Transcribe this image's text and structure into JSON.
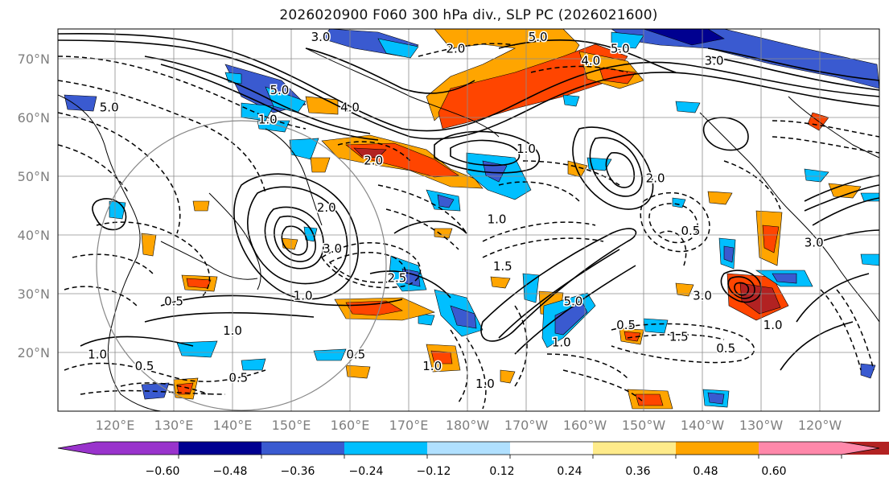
{
  "title": "2026020900 F060 300 hPa div., SLP PC (2026021600)",
  "map": {
    "lat_labels": [
      "70°N",
      "60°N",
      "50°N",
      "40°N",
      "30°N",
      "20°N"
    ],
    "lon_labels": [
      "120°E",
      "130°E",
      "140°E",
      "150°E",
      "160°E",
      "170°E",
      "180°W",
      "170°W",
      "160°W",
      "150°W",
      "140°W",
      "130°W",
      "120°W"
    ],
    "label_color": "#7f7f7f",
    "contour_labels": [
      {
        "text": "2.0",
        "lon": 178,
        "lat": 71
      },
      {
        "text": "5.0",
        "lon": 192,
        "lat": 73
      },
      {
        "text": "4.0",
        "lon": 201,
        "lat": 69
      },
      {
        "text": "5.0",
        "lon": 206,
        "lat": 71
      },
      {
        "text": "3.0",
        "lon": 222,
        "lat": 69
      },
      {
        "text": "5.0",
        "lon": 148,
        "lat": 64
      },
      {
        "text": "4.0",
        "lon": 160,
        "lat": 61
      },
      {
        "text": "5.0",
        "lon": 119,
        "lat": 61
      },
      {
        "text": "1.0",
        "lon": 146,
        "lat": 59
      },
      {
        "text": "3.0",
        "lon": 155,
        "lat": 73
      },
      {
        "text": "1.0",
        "lon": 190,
        "lat": 54
      },
      {
        "text": "2.0",
        "lon": 164,
        "lat": 52
      },
      {
        "text": "2.0",
        "lon": 156,
        "lat": 44
      },
      {
        "text": "3.0",
        "lon": 157,
        "lat": 37
      },
      {
        "text": "2.5",
        "lon": 168,
        "lat": 32
      },
      {
        "text": "1.0",
        "lon": 185,
        "lat": 42
      },
      {
        "text": "1.5",
        "lon": 186,
        "lat": 34
      },
      {
        "text": "1.0",
        "lon": 152,
        "lat": 29
      },
      {
        "text": "1.0",
        "lon": 140,
        "lat": 23
      },
      {
        "text": "0.5",
        "lon": 161,
        "lat": 19
      },
      {
        "text": "0.5",
        "lon": 141,
        "lat": 15
      },
      {
        "text": "0.5",
        "lon": 130,
        "lat": 28
      },
      {
        "text": "0.5",
        "lon": 207,
        "lat": 24
      },
      {
        "text": "1.5",
        "lon": 216,
        "lat": 22
      },
      {
        "text": "3.0",
        "lon": 220,
        "lat": 29
      },
      {
        "text": "3.0",
        "lon": 239,
        "lat": 38
      },
      {
        "text": "1.0",
        "lon": 232,
        "lat": 24
      },
      {
        "text": "0.5",
        "lon": 224,
        "lat": 20
      },
      {
        "text": "2.0",
        "lon": 212,
        "lat": 49
      },
      {
        "text": "0.5",
        "lon": 125,
        "lat": 17
      },
      {
        "text": "1.0",
        "lon": 117,
        "lat": 19
      },
      {
        "text": "0.5",
        "lon": 218,
        "lat": 40
      },
      {
        "text": "1.0",
        "lon": 174,
        "lat": 17
      },
      {
        "text": "1.0",
        "lon": 183,
        "lat": 14
      },
      {
        "text": "1.0",
        "lon": 196,
        "lat": 21
      },
      {
        "text": "5.0",
        "lon": 198,
        "lat": 28
      }
    ]
  },
  "colorbar": {
    "tick_labels": [
      "−0.60",
      "−0.48",
      "−0.36",
      "−0.24",
      "−0.12",
      "0.12",
      "0.24",
      "0.36",
      "0.48",
      "0.60"
    ],
    "colors": [
      "#9933cc",
      "#000090",
      "#3a5ad0",
      "#00bfff",
      "#b0e0ff",
      "#ffffff",
      "#ffeb8a",
      "#ffa500",
      "#ff4500",
      "#b22222",
      "#ff88aa"
    ]
  }
}
